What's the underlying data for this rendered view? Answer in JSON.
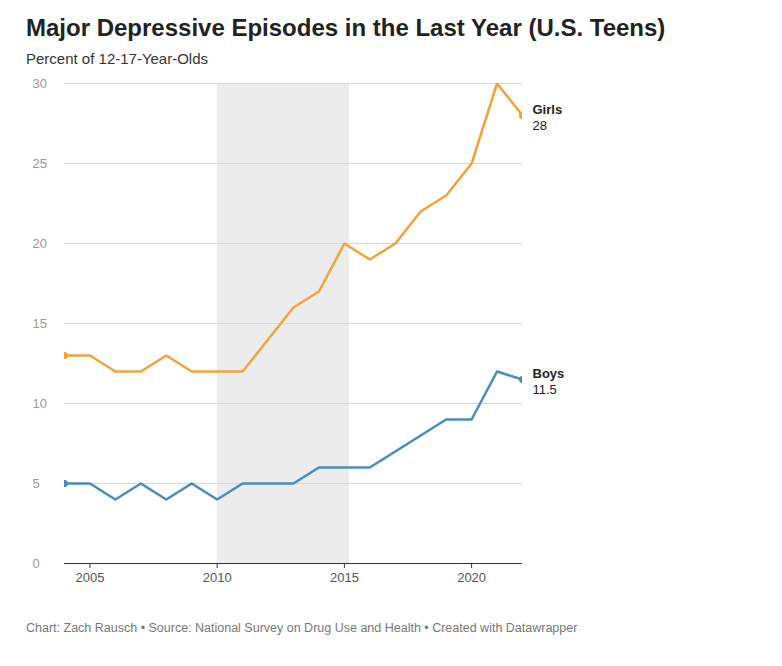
{
  "chart_data": {
    "type": "line",
    "title": "Major Depressive Episodes in the Last Year (U.S. Teens)",
    "subtitle": "Percent of 12-17-Year-Olds",
    "caption": "Chart: Zach Rausch • Source: National Survey on Drug Use and Health • Created with Datawrapper",
    "x": [
      2004,
      2005,
      2006,
      2007,
      2008,
      2009,
      2010,
      2011,
      2012,
      2013,
      2014,
      2015,
      2016,
      2017,
      2018,
      2019,
      2020,
      2021,
      2022
    ],
    "series": [
      {
        "name": "Girls",
        "color": "#f2a33a",
        "values": [
          13,
          13,
          12,
          12,
          13,
          12,
          12,
          12,
          14,
          16,
          17,
          20,
          19,
          20,
          22,
          23,
          25,
          30,
          28
        ],
        "value_labels": [
          null,
          null,
          null,
          null,
          null,
          null,
          null,
          null,
          null,
          null,
          null,
          null,
          null,
          null,
          null,
          null,
          null,
          null,
          "28"
        ]
      },
      {
        "name": "Boys",
        "color": "#4a8db5",
        "values": [
          5,
          5,
          4,
          5,
          4,
          5,
          4,
          5,
          5,
          5,
          6,
          6,
          6,
          7,
          8,
          9,
          9,
          12,
          11.5
        ],
        "value_labels": [
          null,
          null,
          null,
          null,
          null,
          null,
          null,
          null,
          null,
          null,
          null,
          null,
          null,
          null,
          null,
          null,
          null,
          null,
          "11.5"
        ]
      }
    ],
    "highlight": {
      "x": [
        2010,
        2015.2
      ]
    },
    "xlim": [
      2004,
      2022
    ],
    "xticks": [
      2005,
      2010,
      2015,
      2020
    ],
    "ylim": [
      0,
      30
    ],
    "yticks": [
      0,
      5,
      10,
      15,
      20,
      25,
      30
    ],
    "grid": true,
    "marker": "ends"
  }
}
